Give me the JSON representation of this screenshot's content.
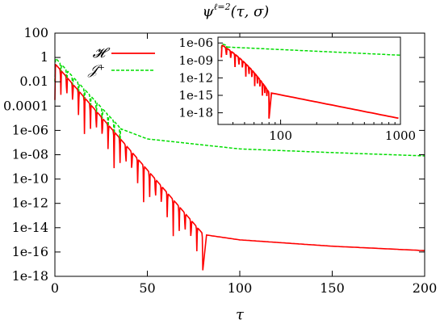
{
  "chart_data": [
    {
      "type": "line",
      "title": "ψ^{ℓ=2}(τ,σ)",
      "title_parts": {
        "base": "ψ",
        "sup": "ℓ=2",
        "args": "(τ, σ)"
      },
      "xlabel": "τ",
      "ylabel": "",
      "xlim": [
        0,
        200
      ],
      "ylim": [
        1e-18,
        100
      ],
      "y_scale": "log",
      "grid": false,
      "legend_placement": "top-left",
      "x_ticks": [
        0,
        50,
        100,
        150,
        200
      ],
      "x_tick_labels": [
        "0",
        "50",
        "100",
        "150",
        "200"
      ],
      "y_ticks": [
        1e-18,
        1e-16,
        1e-14,
        1e-12,
        1e-10,
        1e-08,
        1e-06,
        0.0001,
        0.01,
        1,
        100
      ],
      "y_tick_labels": [
        "1e-18",
        "1e-16",
        "1e-14",
        "1e-12",
        "1e-10",
        "1e-08",
        "1e-06",
        "0.0001",
        "0.01",
        "1",
        "100"
      ],
      "series": [
        {
          "name": "𝓗",
          "color": "#ff0000",
          "style": "solid",
          "description": "oscillating decay (quasinormal ringing) down to ~1e-15 at τ≈80, then power-law tail",
          "ringdown": {
            "tau_end": 80,
            "log10_start": -0.5,
            "log10_end": -14.5,
            "oscillation_period": 3.2,
            "dip_depth_decades": 3
          },
          "tail": [
            [
              82,
              2.5e-15
            ],
            [
              100,
              1e-15
            ],
            [
              150,
              3e-16
            ],
            [
              200,
              1.3e-16
            ]
          ]
        },
        {
          "name": "𝒥⁺",
          "color": "#00dd00",
          "style": "dashed",
          "description": "oscillating decay to ~1e-6 at τ≈35, then slow power-law tail",
          "ringdown": {
            "tau_end": 36,
            "log10_start": 0,
            "log10_end": -5.9,
            "oscillation_period": 3.2,
            "dip_depth_decades": 2
          },
          "tail": [
            [
              36,
              1.3e-06
            ],
            [
              50,
              2e-07
            ],
            [
              100,
              3e-08
            ],
            [
              150,
              1.5e-08
            ],
            [
              200,
              8e-09
            ]
          ]
        }
      ]
    },
    {
      "type": "line",
      "title": "",
      "inset": true,
      "x_scale": "log",
      "y_scale": "log",
      "xlim": [
        30,
        1000
      ],
      "ylim": [
        1e-20,
        1e-05
      ],
      "x_ticks": [
        100,
        1000
      ],
      "x_tick_labels": [
        "100",
        "1000"
      ],
      "y_ticks": [
        1e-18,
        1e-15,
        1e-12,
        1e-09,
        1e-06
      ],
      "y_tick_labels": [
        "1e-18",
        "1e-15",
        "1e-12",
        "1e-09",
        "1e-06"
      ],
      "series": [
        {
          "name": "𝓗",
          "color": "#ff0000",
          "style": "solid",
          "ringdown": {
            "tau_start": 32,
            "tau_end": 80,
            "log10_start": -6.3,
            "log10_end": -14.5
          },
          "tail": [
            [
              80,
              3e-15
            ],
            [
              1000,
              1e-19
            ]
          ]
        },
        {
          "name": "𝒥⁺",
          "color": "#00dd00",
          "style": "dashed",
          "ringdown": {
            "tau_start": 32,
            "tau_end": 36,
            "log10_start": -6.1,
            "log10_end": -6.5
          },
          "tail": [
            [
              36,
              2e-07
            ],
            [
              1000,
              8e-09
            ]
          ]
        }
      ]
    }
  ]
}
